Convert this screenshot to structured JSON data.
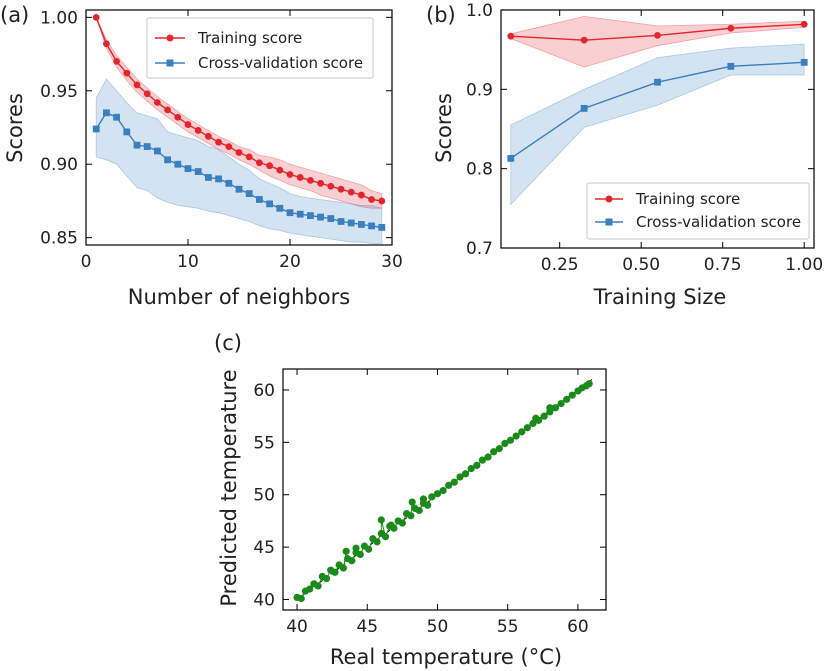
{
  "chart_data": [
    {
      "panel": "(a)",
      "type": "line",
      "xlabel": "Number of neighbors",
      "ylabel": "Scores",
      "xlim": [
        0,
        30
      ],
      "ylim": [
        0.845,
        1.005
      ],
      "xticks": [
        0,
        10,
        20,
        30
      ],
      "yticks": [
        0.85,
        0.9,
        0.95,
        1.0
      ],
      "ytick_labels": [
        "0.85",
        "0.90",
        "0.95",
        "1.00"
      ],
      "legend": "top-right",
      "series": [
        {
          "name": "Training score",
          "color": "#e3262d",
          "marker": "circle",
          "x": [
            1,
            2,
            3,
            4,
            5,
            6,
            7,
            8,
            9,
            10,
            11,
            12,
            13,
            14,
            15,
            16,
            17,
            18,
            19,
            20,
            21,
            22,
            23,
            24,
            25,
            26,
            27,
            28,
            29
          ],
          "values": [
            1.0,
            0.982,
            0.97,
            0.962,
            0.954,
            0.948,
            0.942,
            0.937,
            0.932,
            0.927,
            0.923,
            0.919,
            0.915,
            0.912,
            0.908,
            0.905,
            0.901,
            0.899,
            0.896,
            0.893,
            0.891,
            0.889,
            0.887,
            0.885,
            0.883,
            0.881,
            0.879,
            0.876,
            0.875
          ],
          "band_low": [
            1.0,
            0.979,
            0.966,
            0.957,
            0.949,
            0.943,
            0.937,
            0.932,
            0.927,
            0.922,
            0.918,
            0.914,
            0.91,
            0.907,
            0.903,
            0.9,
            0.896,
            0.892,
            0.889,
            0.886,
            0.884,
            0.882,
            0.879,
            0.877,
            0.875,
            0.873,
            0.871,
            0.87,
            0.87
          ],
          "band_high": [
            1.0,
            0.985,
            0.974,
            0.966,
            0.958,
            0.952,
            0.946,
            0.941,
            0.936,
            0.931,
            0.927,
            0.923,
            0.919,
            0.916,
            0.912,
            0.91,
            0.906,
            0.905,
            0.903,
            0.9,
            0.898,
            0.896,
            0.894,
            0.892,
            0.89,
            0.888,
            0.886,
            0.882,
            0.88
          ]
        },
        {
          "name": "Cross-validation score",
          "color": "#3a7fbf",
          "marker": "square",
          "x": [
            1,
            2,
            3,
            4,
            5,
            6,
            7,
            8,
            9,
            10,
            11,
            12,
            13,
            14,
            15,
            16,
            17,
            18,
            19,
            20,
            21,
            22,
            23,
            24,
            25,
            26,
            27,
            28,
            29
          ],
          "values": [
            0.924,
            0.935,
            0.932,
            0.922,
            0.913,
            0.912,
            0.909,
            0.903,
            0.9,
            0.897,
            0.895,
            0.891,
            0.89,
            0.887,
            0.883,
            0.88,
            0.876,
            0.873,
            0.87,
            0.867,
            0.866,
            0.865,
            0.864,
            0.863,
            0.861,
            0.86,
            0.859,
            0.858,
            0.857
          ],
          "band_low": [
            0.905,
            0.903,
            0.9,
            0.892,
            0.884,
            0.882,
            0.877,
            0.874,
            0.872,
            0.871,
            0.87,
            0.868,
            0.867,
            0.865,
            0.863,
            0.861,
            0.858,
            0.856,
            0.855,
            0.853,
            0.852,
            0.851,
            0.85,
            0.849,
            0.848,
            0.847,
            0.847,
            0.846,
            0.846
          ],
          "band_high": [
            0.945,
            0.958,
            0.95,
            0.942,
            0.935,
            0.933,
            0.931,
            0.922,
            0.92,
            0.918,
            0.916,
            0.912,
            0.91,
            0.905,
            0.9,
            0.896,
            0.89,
            0.887,
            0.884,
            0.88,
            0.878,
            0.877,
            0.876,
            0.875,
            0.874,
            0.873,
            0.872,
            0.872,
            0.87
          ]
        }
      ]
    },
    {
      "panel": "(b)",
      "type": "line",
      "xlabel": "Training Size",
      "ylabel": "Scores",
      "xlim": [
        0.07,
        1.03
      ],
      "ylim": [
        0.7,
        1.0
      ],
      "xticks": [
        0.25,
        0.5,
        0.75,
        1.0
      ],
      "xtick_labels": [
        "0.25",
        "0.50",
        "0.75",
        "1.00"
      ],
      "yticks": [
        0.7,
        0.8,
        0.9,
        1.0
      ],
      "ytick_labels": [
        "0.7",
        "0.8",
        "0.9",
        "1.0"
      ],
      "legend": "bottom-right",
      "series": [
        {
          "name": "Training score",
          "color": "#e3262d",
          "marker": "circle",
          "x": [
            0.1,
            0.325,
            0.55,
            0.775,
            1.0
          ],
          "values": [
            0.967,
            0.962,
            0.968,
            0.977,
            0.982
          ],
          "band_low": [
            0.964,
            0.928,
            0.955,
            0.971,
            0.978
          ],
          "band_high": [
            0.97,
            0.992,
            0.98,
            0.982,
            0.986
          ]
        },
        {
          "name": "Cross-validation score",
          "color": "#3a7fbf",
          "marker": "square",
          "x": [
            0.1,
            0.325,
            0.55,
            0.775,
            1.0
          ],
          "values": [
            0.813,
            0.876,
            0.909,
            0.929,
            0.934
          ],
          "band_low": [
            0.755,
            0.852,
            0.88,
            0.918,
            0.918
          ],
          "band_high": [
            0.855,
            0.9,
            0.94,
            0.952,
            0.957
          ]
        }
      ]
    },
    {
      "panel": "(c)",
      "type": "scatter",
      "xlabel": "Real temperature (°C)",
      "ylabel": "Predicted temperature",
      "xlim": [
        39,
        62
      ],
      "ylim": [
        39,
        62
      ],
      "xticks": [
        40,
        45,
        50,
        55,
        60
      ],
      "yticks": [
        40,
        45,
        50,
        55,
        60
      ],
      "color": "#1a8a1a",
      "reference_line": "y = x",
      "x": [
        40.0,
        40.3,
        40.6,
        40.9,
        41.2,
        41.5,
        41.8,
        42.1,
        42.4,
        42.7,
        43.0,
        43.3,
        43.6,
        43.9,
        44.2,
        44.5,
        44.8,
        45.1,
        45.4,
        45.7,
        46.0,
        46.3,
        46.6,
        46.9,
        47.2,
        47.5,
        47.8,
        48.1,
        48.4,
        48.7,
        49.0,
        49.3,
        49.6,
        50.0,
        50.4,
        50.8,
        51.2,
        51.6,
        52.0,
        52.4,
        52.8,
        53.2,
        53.6,
        54.0,
        54.4,
        54.8,
        55.2,
        55.6,
        56.0,
        56.4,
        56.8,
        57.2,
        57.6,
        58.0,
        58.4,
        58.8,
        59.2,
        59.6,
        60.0,
        60.3,
        60.6,
        60.8,
        43.5,
        44.2,
        46.0,
        46.7,
        48.2,
        49.0,
        57.0,
        58.0
      ],
      "y": [
        40.2,
        40.1,
        40.8,
        41.0,
        41.5,
        41.3,
        42.2,
        42.0,
        42.8,
        42.6,
        43.3,
        43.0,
        43.9,
        43.7,
        44.5,
        44.3,
        45.1,
        44.8,
        45.8,
        45.5,
        46.3,
        46.0,
        47.0,
        46.8,
        47.5,
        47.3,
        48.2,
        48.0,
        48.7,
        48.5,
        49.2,
        49.0,
        49.8,
        50.1,
        50.4,
        50.9,
        51.2,
        51.7,
        52.0,
        52.5,
        52.8,
        53.3,
        53.6,
        54.1,
        54.4,
        54.9,
        55.2,
        55.6,
        56.0,
        56.4,
        56.8,
        57.1,
        57.5,
        57.9,
        58.3,
        58.7,
        59.1,
        59.5,
        59.9,
        60.2,
        60.4,
        60.6,
        44.6,
        44.9,
        47.6,
        47.1,
        49.3,
        49.6,
        57.3,
        58.3
      ]
    }
  ]
}
